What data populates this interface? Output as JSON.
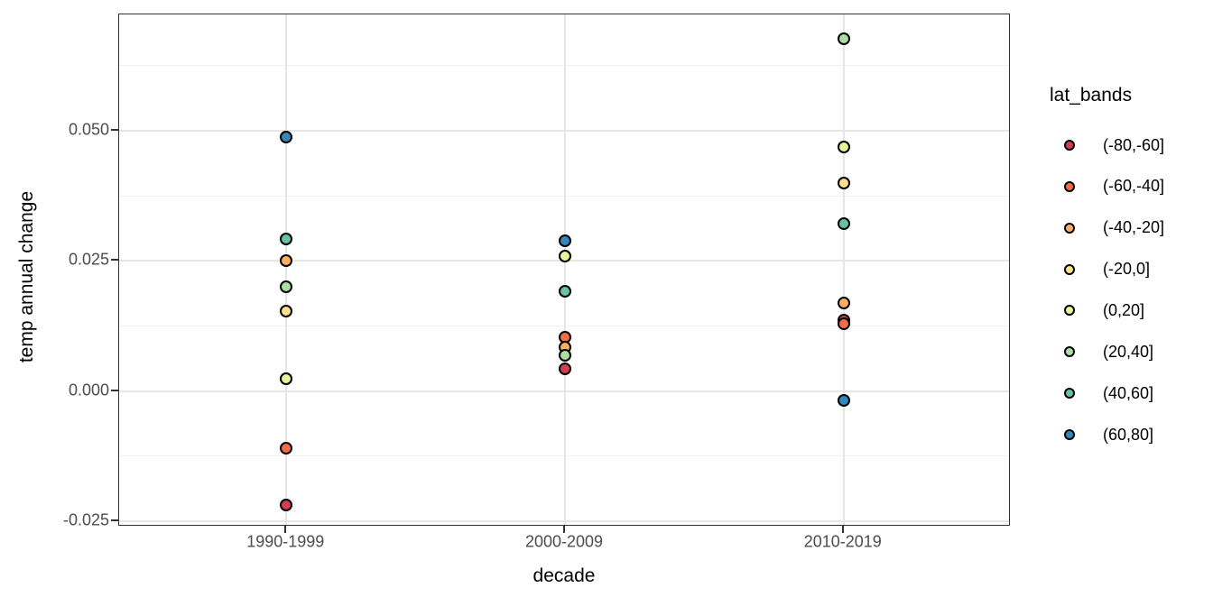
{
  "figure": {
    "background": "#ffffff",
    "panel_border_color": "#333333",
    "gridline_color": "#e6e6e6",
    "axis_text_color": "#4d4d4d"
  },
  "x_axis": {
    "title": "decade",
    "tick_labels": [
      "1990-1999",
      "2000-2009",
      "2010-2019"
    ]
  },
  "y_axis": {
    "title": "temp annual change",
    "tick_labels": [
      "0.050",
      "0.025",
      "0.000",
      "-0.025"
    ],
    "tick_values": [
      0.05,
      0.025,
      0.0,
      -0.025
    ]
  },
  "legend": {
    "title": "lat_bands",
    "items": [
      {
        "label": "(-80,-60]",
        "color": "#D53E4F"
      },
      {
        "label": "(-60,-40]",
        "color": "#F46D43"
      },
      {
        "label": "(-40,-20]",
        "color": "#FDAE61"
      },
      {
        "label": "(-20,0]",
        "color": "#FEE08B"
      },
      {
        "label": "(0,20]",
        "color": "#E6F598"
      },
      {
        "label": "(20,40]",
        "color": "#ABDDA4"
      },
      {
        "label": "(40,60]",
        "color": "#66C2A5"
      },
      {
        "label": "(60,80]",
        "color": "#3288BD"
      }
    ]
  },
  "chart_data": {
    "type": "scatter",
    "title": "",
    "xlabel": "decade",
    "ylabel": "temp annual change",
    "categories": [
      "1990-1999",
      "2000-2009",
      "2010-2019"
    ],
    "ylim": [
      -0.026,
      0.0723
    ],
    "y_major_gridlines": [
      0.05,
      0.025,
      0.0,
      -0.025
    ],
    "y_minor_gridlines": [
      0.0625,
      0.0375,
      0.0125,
      -0.0125
    ],
    "grid": true,
    "legend_position": "right",
    "legend_title": "lat_bands",
    "point_note": "values are temp annual change per decade; null = point not visible (overplotted)",
    "series": [
      {
        "name": "(-80,-60]",
        "color": "#D53E4F",
        "values": [
          -0.0219,
          0.0043,
          0.0137
        ]
      },
      {
        "name": "(-60,-40]",
        "color": "#F46D43",
        "values": [
          -0.011,
          0.0103,
          0.0129
        ]
      },
      {
        "name": "(-40,-20]",
        "color": "#FDAE61",
        "values": [
          0.025,
          0.0084,
          0.017
        ]
      },
      {
        "name": "(-20,0]",
        "color": "#FEE08B",
        "values": [
          0.0153,
          null,
          0.04
        ]
      },
      {
        "name": "(0,20]",
        "color": "#E6F598",
        "values": [
          0.0024,
          0.026,
          0.0469
        ]
      },
      {
        "name": "(20,40]",
        "color": "#ABDDA4",
        "values": [
          0.0201,
          0.0068,
          0.0677
        ]
      },
      {
        "name": "(40,60]",
        "color": "#66C2A5",
        "values": [
          0.0292,
          0.0192,
          0.0321
        ]
      },
      {
        "name": "(60,80]",
        "color": "#3288BD",
        "values": [
          0.0488,
          0.0289,
          -0.0018
        ]
      }
    ]
  }
}
